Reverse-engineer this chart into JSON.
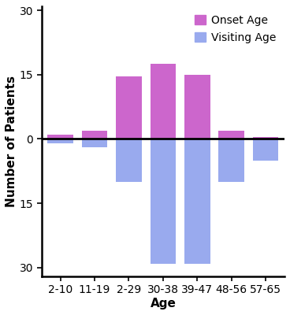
{
  "categories": [
    "2-10",
    "11-19",
    "2-29",
    "30-38",
    "39-47",
    "48-56",
    "57-65"
  ],
  "onset_age": [
    1,
    2,
    14.5,
    17.5,
    15,
    2,
    0.5
  ],
  "visiting_age": [
    -1,
    -2,
    -10,
    -29,
    -29,
    -10,
    -5
  ],
  "onset_color": "#CC66CC",
  "visiting_color": "#99AAEE",
  "onset_label": "Onset Age",
  "visiting_label": "Visiting Age",
  "xlabel": "Age",
  "ylabel": "Number of Patients",
  "yticks": [
    -30,
    -15,
    0,
    15,
    30
  ],
  "yticklabels": [
    "30",
    "15",
    "0",
    "15",
    "30"
  ],
  "ylim": [
    -32,
    31
  ],
  "bar_width": 0.75,
  "background_color": "#ffffff",
  "hline_color": "black",
  "hline_lw": 2.0,
  "tick_fontsize": 10,
  "label_fontsize": 11,
  "legend_fontsize": 10
}
